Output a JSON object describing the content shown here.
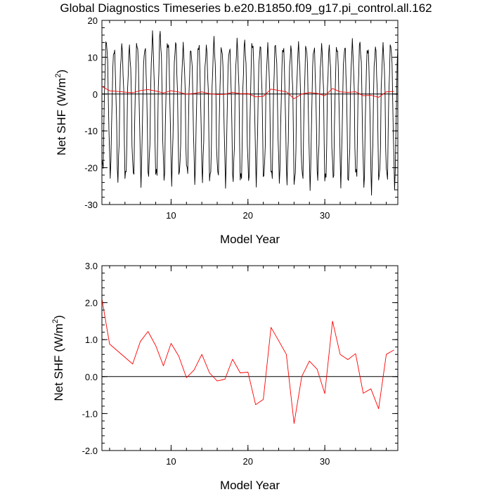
{
  "title": "Global Diagnostics Timeseries b.e20.B1850.f09_g17.pi_control.all.162",
  "chart_data": [
    {
      "type": "line",
      "title": "Global Diagnostics Timeseries b.e20.B1850.f09_g17.pi_control.all.162",
      "xlabel": "Model Year",
      "ylabel_main": "Net SHF (W/m",
      "ylabel_sup": "2",
      "ylabel_close": ")",
      "xlim": [
        1,
        39.5
      ],
      "ylim": [
        -30,
        20
      ],
      "xticks": [
        10,
        20,
        30
      ],
      "yticks": [
        -30,
        -20,
        -10,
        0,
        10,
        20
      ],
      "ytick_labels": [
        "-30",
        "-20",
        "-10",
        "0",
        "10",
        "20"
      ],
      "reference_line": 0,
      "grid": false,
      "series": [
        {
          "color": "#000000",
          "monthly": true,
          "annual_max": [
            14.5,
            12.2,
            12.8,
            12.3,
            14.0,
            12.6,
            15.5,
            16.5,
            14.3,
            14.0,
            12.6,
            12.0,
            13.6,
            12.6,
            14.3,
            12.8,
            12.4,
            13.8,
            14.0,
            14.2,
            13.1,
            12.5,
            13.4,
            12.9,
            12.6,
            12.9,
            13.2,
            12.7,
            12.6,
            12.5,
            13.0,
            12.8,
            13.5,
            14.0,
            12.6,
            12.5,
            12.6,
            13.6,
            14.5
          ],
          "annual_min": [
            -20.5,
            -21.0,
            -22.5,
            -23.5,
            -22.3,
            -22.7,
            -22.2,
            -23.2,
            -22.9,
            -22.5,
            -22.2,
            -22.0,
            -22.8,
            -22.3,
            -24.0,
            -22.4,
            -23.0,
            -23.2,
            -24.5,
            -23.4,
            -22.6,
            -23.0,
            -23.5,
            -22.8,
            -22.6,
            -24.9,
            -23.3,
            -23.7,
            -22.5,
            -24.5,
            -23.0,
            -22.8,
            -23.9,
            -23.1,
            -24.2,
            -24.9,
            -23.7,
            -23.5,
            -23.8
          ]
        },
        {
          "color": "#ff0000",
          "x": [
            1,
            2,
            3,
            4,
            5,
            6,
            7,
            8,
            9,
            10,
            11,
            12,
            13,
            14,
            15,
            16,
            17,
            18,
            19,
            20,
            21,
            22,
            23,
            24,
            25,
            26,
            27,
            28,
            29,
            30,
            31,
            32,
            33,
            34,
            35,
            36,
            37,
            38,
            39
          ],
          "values": [
            2.1,
            0.88,
            0.7,
            0.52,
            0.34,
            0.95,
            1.22,
            0.84,
            0.29,
            0.9,
            0.55,
            -0.03,
            0.18,
            0.6,
            0.1,
            -0.12,
            -0.07,
            0.47,
            0.1,
            0.12,
            -0.76,
            -0.62,
            1.33,
            0.97,
            0.6,
            -1.27,
            0.0,
            0.42,
            0.2,
            -0.46,
            1.5,
            0.6,
            0.46,
            0.62,
            -0.45,
            -0.33,
            -0.87,
            0.6,
            0.72
          ]
        }
      ]
    },
    {
      "type": "line",
      "xlabel": "Model Year",
      "ylabel_main": "Net SHF (W/m",
      "ylabel_sup": "2",
      "ylabel_close": ")",
      "xlim": [
        1,
        39.5
      ],
      "ylim": [
        -2,
        3
      ],
      "xticks": [
        10,
        20,
        30
      ],
      "yticks": [
        -2,
        -1,
        0,
        1,
        2,
        3
      ],
      "ytick_labels": [
        "-2.0",
        "-1.0",
        "0.0",
        "1.0",
        "2.0",
        "3.0"
      ],
      "reference_line": 0,
      "grid": false,
      "series": [
        {
          "color": "#ff0000",
          "x": [
            1,
            2,
            3,
            4,
            5,
            6,
            7,
            8,
            9,
            10,
            11,
            12,
            13,
            14,
            15,
            16,
            17,
            18,
            19,
            20,
            21,
            22,
            23,
            24,
            25,
            26,
            27,
            28,
            29,
            30,
            31,
            32,
            33,
            34,
            35,
            36,
            37,
            38,
            39
          ],
          "values": [
            2.1,
            0.88,
            0.7,
            0.52,
            0.34,
            0.95,
            1.22,
            0.84,
            0.29,
            0.9,
            0.55,
            -0.03,
            0.18,
            0.6,
            0.1,
            -0.12,
            -0.07,
            0.47,
            0.1,
            0.12,
            -0.76,
            -0.62,
            1.33,
            0.97,
            0.6,
            -1.27,
            0.0,
            0.42,
            0.2,
            -0.46,
            1.5,
            0.6,
            0.46,
            0.62,
            -0.45,
            -0.33,
            -0.87,
            0.6,
            0.72
          ]
        }
      ]
    }
  ]
}
